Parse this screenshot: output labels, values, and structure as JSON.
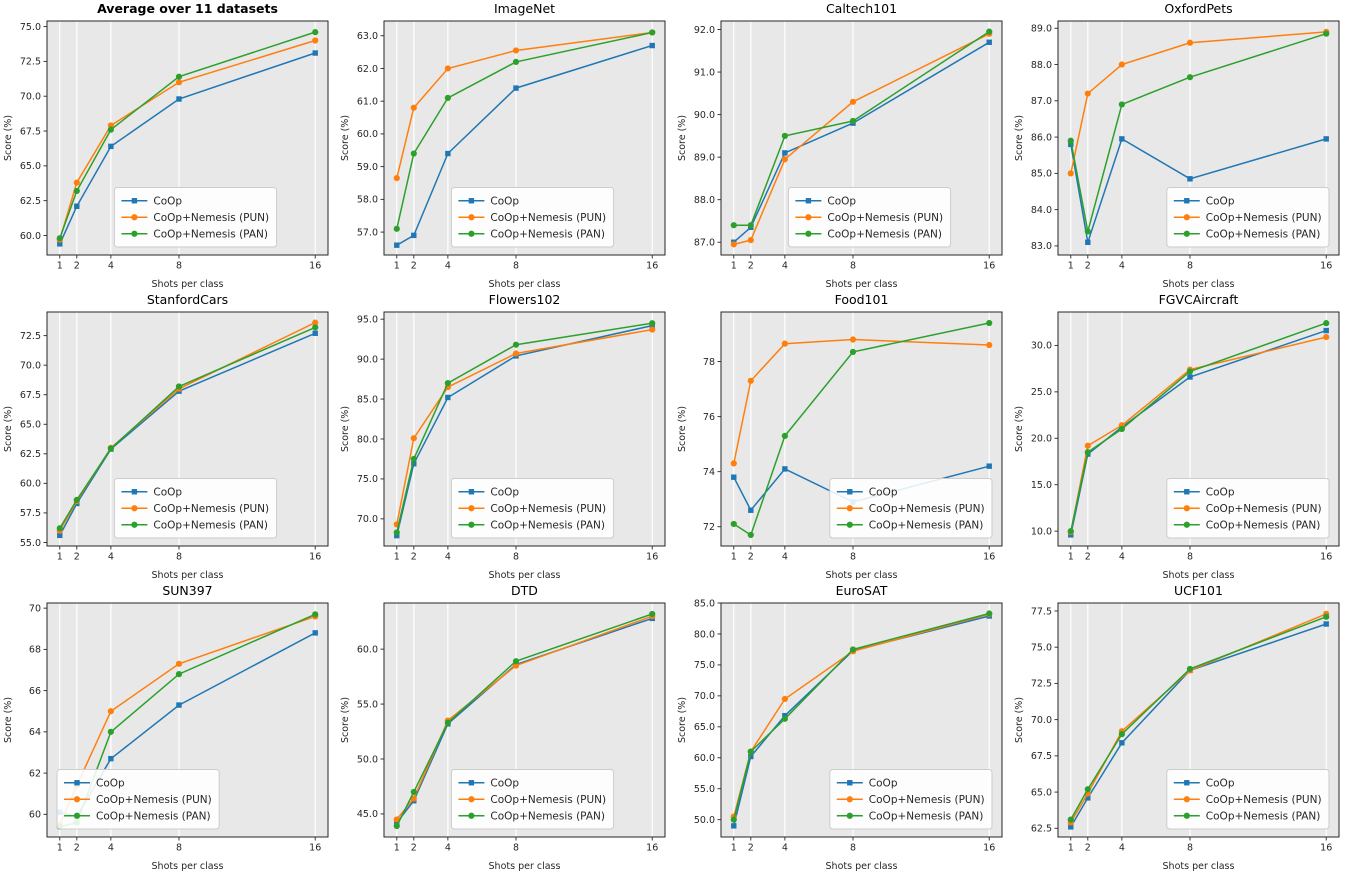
{
  "figure": {
    "xlabel": "Shots per class",
    "ylabel": "Score (%)"
  },
  "style": {
    "axes_bg": "#e8e8e8",
    "grid_color": "#ffffff",
    "spine_color": "#262626",
    "text_color": "#262626",
    "legend_bg": "#ffffff",
    "legend_border": "#cccccc",
    "coop_color": "#1f77b4",
    "pun_color": "#ff7f0e",
    "pan_color": "#2ca02c"
  },
  "series_meta": [
    {
      "name": "CoOp",
      "color": "#1f77b4",
      "marker": "square"
    },
    {
      "name": "CoOp+Nemesis (PUN)",
      "color": "#ff7f0e",
      "marker": "circle"
    },
    {
      "name": "CoOp+Nemesis (PAN)",
      "color": "#2ca02c",
      "marker": "circle"
    }
  ],
  "chart_data": [
    {
      "type": "line",
      "id": "average",
      "title": "Average over 11 datasets",
      "title_bold": true,
      "xlabel": "Shots per class",
      "ylabel": "Score (%)",
      "x": [
        1,
        2,
        4,
        8,
        16
      ],
      "xlim": [
        0.25,
        16.75
      ],
      "ylim": [
        58.6,
        75.4
      ],
      "yticks": [
        60.0,
        62.5,
        65.0,
        67.5,
        70.0,
        72.5,
        75.0
      ],
      "ytick_decimals": 1,
      "grid": "vertical",
      "legend_loc": "lower center",
      "series": [
        {
          "name": "CoOp",
          "values": [
            59.4,
            62.1,
            66.4,
            69.8,
            73.1
          ]
        },
        {
          "name": "CoOp+Nemesis (PUN)",
          "values": [
            59.7,
            63.8,
            67.9,
            71.0,
            74.0
          ]
        },
        {
          "name": "CoOp+Nemesis (PAN)",
          "values": [
            59.8,
            63.2,
            67.6,
            71.4,
            74.6
          ]
        }
      ]
    },
    {
      "type": "line",
      "id": "imagenet",
      "title": "ImageNet",
      "title_bold": false,
      "xlabel": "Shots per class",
      "ylabel": "Score (%)",
      "x": [
        1,
        2,
        4,
        8,
        16
      ],
      "xlim": [
        0.25,
        16.75
      ],
      "ylim": [
        56.3,
        63.45
      ],
      "yticks": [
        57.0,
        58.0,
        59.0,
        60.0,
        61.0,
        62.0,
        63.0
      ],
      "ytick_decimals": 1,
      "grid": "vertical",
      "legend_loc": "lower center",
      "series": [
        {
          "name": "CoOp",
          "values": [
            56.6,
            56.9,
            59.4,
            61.4,
            62.7
          ]
        },
        {
          "name": "CoOp+Nemesis (PUN)",
          "values": [
            58.65,
            60.8,
            62.0,
            62.55,
            63.1
          ]
        },
        {
          "name": "CoOp+Nemesis (PAN)",
          "values": [
            57.1,
            59.4,
            61.1,
            62.2,
            63.1
          ]
        }
      ]
    },
    {
      "type": "line",
      "id": "caltech101",
      "title": "Caltech101",
      "title_bold": false,
      "xlabel": "Shots per class",
      "ylabel": "Score (%)",
      "x": [
        1,
        2,
        4,
        8,
        16
      ],
      "xlim": [
        0.25,
        16.75
      ],
      "ylim": [
        86.7,
        92.2
      ],
      "yticks": [
        87.0,
        88.0,
        89.0,
        90.0,
        91.0,
        92.0
      ],
      "ytick_decimals": 1,
      "grid": "vertical",
      "legend_loc": "lower center",
      "series": [
        {
          "name": "CoOp",
          "values": [
            87.0,
            87.35,
            89.1,
            89.8,
            91.7
          ]
        },
        {
          "name": "CoOp+Nemesis (PUN)",
          "values": [
            86.95,
            87.05,
            88.95,
            90.3,
            91.9
          ]
        },
        {
          "name": "CoOp+Nemesis (PAN)",
          "values": [
            87.4,
            87.4,
            89.5,
            89.85,
            91.95
          ]
        }
      ]
    },
    {
      "type": "line",
      "id": "oxfordpets",
      "title": "OxfordPets",
      "title_bold": false,
      "xlabel": "Shots per class",
      "ylabel": "Score (%)",
      "x": [
        1,
        2,
        4,
        8,
        16
      ],
      "xlim": [
        0.25,
        16.75
      ],
      "ylim": [
        82.75,
        89.2
      ],
      "yticks": [
        83.0,
        84.0,
        85.0,
        86.0,
        87.0,
        88.0,
        89.0
      ],
      "ytick_decimals": 1,
      "grid": "vertical",
      "legend_loc": "lower right",
      "series": [
        {
          "name": "CoOp",
          "values": [
            85.8,
            83.1,
            85.95,
            84.85,
            85.95
          ]
        },
        {
          "name": "CoOp+Nemesis (PUN)",
          "values": [
            85.0,
            87.2,
            88.0,
            88.6,
            88.9
          ]
        },
        {
          "name": "CoOp+Nemesis (PAN)",
          "values": [
            85.9,
            83.4,
            86.9,
            87.65,
            88.85
          ]
        }
      ]
    },
    {
      "type": "line",
      "id": "stanfordcars",
      "title": "StanfordCars",
      "title_bold": false,
      "xlabel": "Shots per class",
      "ylabel": "Score (%)",
      "x": [
        1,
        2,
        4,
        8,
        16
      ],
      "xlim": [
        0.25,
        16.75
      ],
      "ylim": [
        54.7,
        74.5
      ],
      "yticks": [
        55.0,
        57.5,
        60.0,
        62.5,
        65.0,
        67.5,
        70.0,
        72.5
      ],
      "ytick_decimals": 1,
      "grid": "vertical",
      "legend_loc": "lower center",
      "series": [
        {
          "name": "CoOp",
          "values": [
            55.6,
            58.3,
            62.9,
            67.8,
            72.7
          ]
        },
        {
          "name": "CoOp+Nemesis (PUN)",
          "values": [
            56.0,
            58.5,
            63.0,
            68.0,
            73.6
          ]
        },
        {
          "name": "CoOp+Nemesis (PAN)",
          "values": [
            56.2,
            58.6,
            62.95,
            68.2,
            73.2
          ]
        }
      ]
    },
    {
      "type": "line",
      "id": "flowers102",
      "title": "Flowers102",
      "title_bold": false,
      "xlabel": "Shots per class",
      "ylabel": "Score (%)",
      "x": [
        1,
        2,
        4,
        8,
        16
      ],
      "xlim": [
        0.25,
        16.75
      ],
      "ylim": [
        66.6,
        95.9
      ],
      "yticks": [
        70.0,
        75.0,
        80.0,
        85.0,
        90.0,
        95.0
      ],
      "ytick_decimals": 1,
      "grid": "vertical",
      "legend_loc": "lower center",
      "series": [
        {
          "name": "CoOp",
          "values": [
            67.9,
            76.9,
            85.2,
            90.4,
            94.2
          ]
        },
        {
          "name": "CoOp+Nemesis (PUN)",
          "values": [
            69.3,
            80.1,
            86.5,
            90.7,
            93.7
          ]
        },
        {
          "name": "CoOp+Nemesis (PAN)",
          "values": [
            68.3,
            77.5,
            87.0,
            91.8,
            94.5
          ]
        }
      ]
    },
    {
      "type": "line",
      "id": "food101",
      "title": "Food101",
      "title_bold": false,
      "xlabel": "Shots per class",
      "ylabel": "Score (%)",
      "x": [
        1,
        2,
        4,
        8,
        16
      ],
      "xlim": [
        0.25,
        16.75
      ],
      "ylim": [
        71.3,
        79.8
      ],
      "yticks": [
        72,
        74,
        76,
        78
      ],
      "ytick_decimals": 0,
      "grid": "vertical",
      "legend_loc": "lower right",
      "series": [
        {
          "name": "CoOp",
          "values": [
            73.8,
            72.6,
            74.1,
            72.9,
            74.2
          ]
        },
        {
          "name": "CoOp+Nemesis (PUN)",
          "values": [
            74.3,
            77.3,
            78.65,
            78.8,
            78.6
          ]
        },
        {
          "name": "CoOp+Nemesis (PAN)",
          "values": [
            72.1,
            71.7,
            75.3,
            78.35,
            79.4
          ]
        }
      ]
    },
    {
      "type": "line",
      "id": "fgvcaircraft",
      "title": "FGVCAircraft",
      "title_bold": false,
      "xlabel": "Shots per class",
      "ylabel": "Score (%)",
      "x": [
        1,
        2,
        4,
        8,
        16
      ],
      "xlim": [
        0.25,
        16.75
      ],
      "ylim": [
        8.4,
        33.6
      ],
      "yticks": [
        10.0,
        15.0,
        20.0,
        25.0,
        30.0
      ],
      "ytick_decimals": 1,
      "grid": "vertical",
      "legend_loc": "lower right",
      "series": [
        {
          "name": "CoOp",
          "values": [
            9.6,
            18.3,
            21.2,
            26.6,
            31.6
          ]
        },
        {
          "name": "CoOp+Nemesis (PUN)",
          "values": [
            9.9,
            19.2,
            21.4,
            27.4,
            30.9
          ]
        },
        {
          "name": "CoOp+Nemesis (PAN)",
          "values": [
            10.0,
            18.5,
            21.0,
            27.2,
            32.4
          ]
        }
      ]
    },
    {
      "type": "line",
      "id": "sun397",
      "title": "SUN397",
      "title_bold": false,
      "xlabel": "Shots per class",
      "ylabel": "Score (%)",
      "x": [
        1,
        2,
        4,
        8,
        16
      ],
      "xlim": [
        0.25,
        16.75
      ],
      "ylim": [
        58.9,
        70.25
      ],
      "yticks": [
        60,
        62,
        64,
        66,
        68,
        70
      ],
      "ytick_decimals": 0,
      "grid": "vertical",
      "legend_loc": "lower left",
      "series": [
        {
          "name": "CoOp",
          "values": [
            60.1,
            59.9,
            62.7,
            65.3,
            68.8
          ]
        },
        {
          "name": "CoOp+Nemesis (PUN)",
          "values": [
            59.5,
            61.4,
            65.0,
            67.3,
            69.6
          ]
        },
        {
          "name": "CoOp+Nemesis (PAN)",
          "values": [
            59.4,
            59.6,
            64.0,
            66.8,
            69.7
          ]
        }
      ]
    },
    {
      "type": "line",
      "id": "dtd",
      "title": "DTD",
      "title_bold": false,
      "xlabel": "Shots per class",
      "ylabel": "Score (%)",
      "x": [
        1,
        2,
        4,
        8,
        16
      ],
      "xlim": [
        0.25,
        16.75
      ],
      "ylim": [
        42.9,
        64.2
      ],
      "yticks": [
        45.0,
        50.0,
        55.0,
        60.0
      ],
      "ytick_decimals": 1,
      "grid": "vertical",
      "legend_loc": "lower center",
      "series": [
        {
          "name": "CoOp",
          "values": [
            44.2,
            46.2,
            53.2,
            58.6,
            62.8
          ]
        },
        {
          "name": "CoOp+Nemesis (PUN)",
          "values": [
            44.5,
            46.4,
            53.5,
            58.5,
            63.0
          ]
        },
        {
          "name": "CoOp+Nemesis (PAN)",
          "values": [
            43.9,
            47.0,
            53.3,
            58.9,
            63.2
          ]
        }
      ]
    },
    {
      "type": "line",
      "id": "eurosat",
      "title": "EuroSAT",
      "title_bold": false,
      "xlabel": "Shots per class",
      "ylabel": "Score (%)",
      "x": [
        1,
        2,
        4,
        8,
        16
      ],
      "xlim": [
        0.25,
        16.75
      ],
      "ylim": [
        47.2,
        85.0
      ],
      "yticks": [
        50.0,
        55.0,
        60.0,
        65.0,
        70.0,
        75.0,
        80.0,
        85.0
      ],
      "ytick_decimals": 1,
      "grid": "vertical",
      "legend_loc": "lower right",
      "series": [
        {
          "name": "CoOp",
          "values": [
            49.0,
            60.2,
            66.8,
            77.3,
            82.9
          ]
        },
        {
          "name": "CoOp+Nemesis (PUN)",
          "values": [
            50.5,
            61.0,
            69.5,
            77.2,
            83.2
          ]
        },
        {
          "name": "CoOp+Nemesis (PAN)",
          "values": [
            50.0,
            61.0,
            66.3,
            77.5,
            83.3
          ]
        }
      ]
    },
    {
      "type": "line",
      "id": "ucf101",
      "title": "UCF101",
      "title_bold": false,
      "xlabel": "Shots per class",
      "ylabel": "Score (%)",
      "x": [
        1,
        2,
        4,
        8,
        16
      ],
      "xlim": [
        0.25,
        16.75
      ],
      "ylim": [
        61.9,
        78.05
      ],
      "yticks": [
        62.5,
        65.0,
        67.5,
        70.0,
        72.5,
        75.0,
        77.5
      ],
      "ytick_decimals": 1,
      "grid": "vertical",
      "legend_loc": "lower right",
      "series": [
        {
          "name": "CoOp",
          "values": [
            62.6,
            64.6,
            68.4,
            73.4,
            76.6
          ]
        },
        {
          "name": "CoOp+Nemesis (PUN)",
          "values": [
            62.9,
            64.9,
            69.2,
            73.4,
            77.3
          ]
        },
        {
          "name": "CoOp+Nemesis (PAN)",
          "values": [
            63.1,
            65.2,
            69.0,
            73.5,
            77.1
          ]
        }
      ]
    }
  ]
}
